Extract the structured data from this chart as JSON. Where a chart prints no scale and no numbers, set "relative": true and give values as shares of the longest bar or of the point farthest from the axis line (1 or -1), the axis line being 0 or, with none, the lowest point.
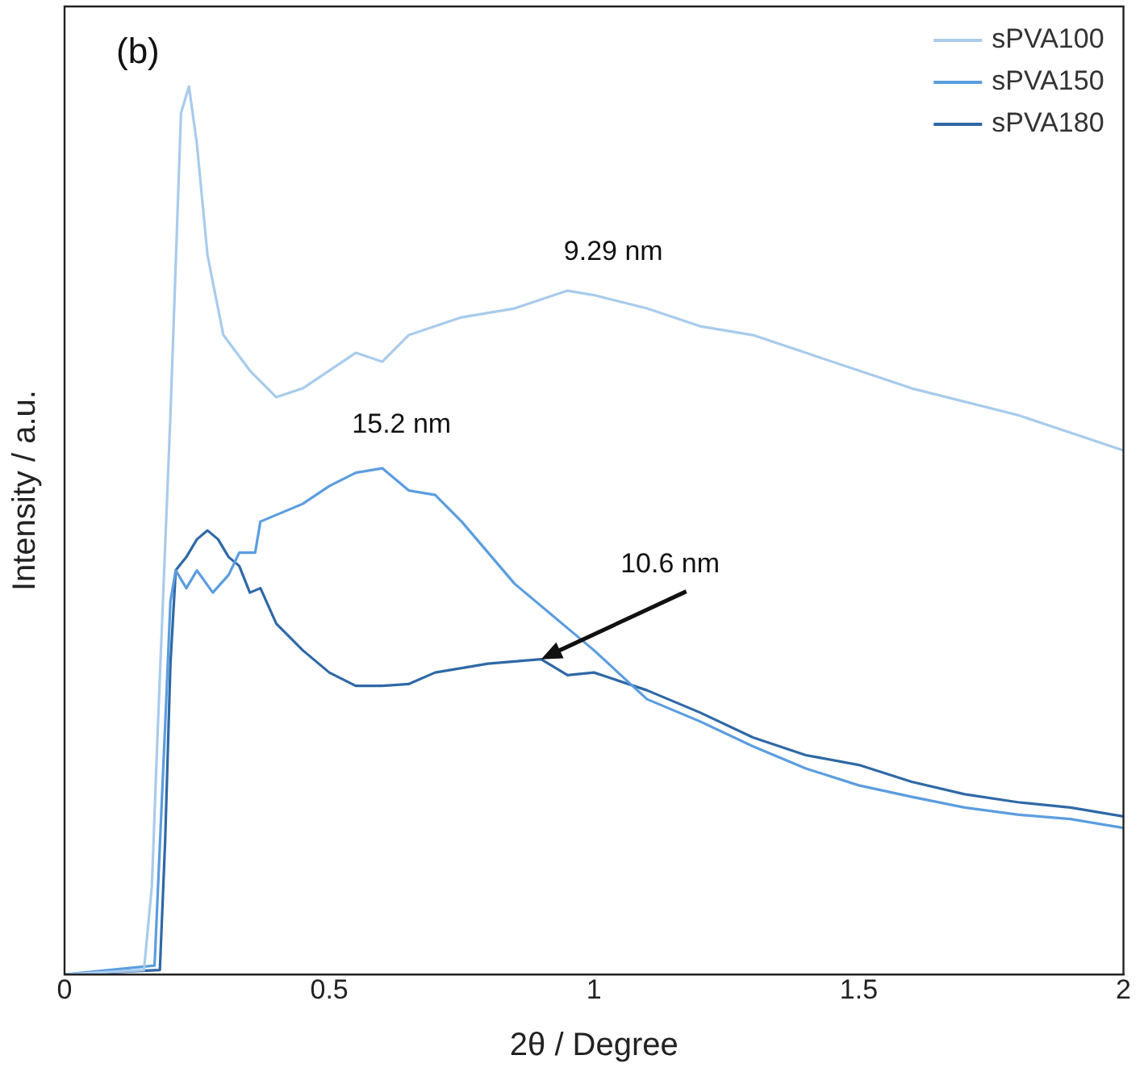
{
  "chart_data": {
    "type": "line",
    "relative": true,
    "xlabel": "2θ / Degree",
    "ylabel": "Intensity / a.u.",
    "xlim": [
      0,
      2
    ],
    "xticks": [
      0,
      0.5,
      1,
      1.5,
      2
    ],
    "grid": false,
    "legend": "top right",
    "marker": "none",
    "line_style": "solid",
    "annotations": [
      "(b)",
      {
        "text": "9.29 nm",
        "x": 1.0,
        "y": 0.765
      },
      {
        "text": "15.2 nm",
        "x": 0.6,
        "y": 0.57
      },
      {
        "text": "10.6 nm",
        "x": 0.9,
        "y": 0.355
      }
    ],
    "series": [
      {
        "name": "sPVA100",
        "color": "#a9cbec",
        "x": [
          0,
          0.15,
          0.165,
          0.175,
          0.2,
          0.22,
          0.235,
          0.25,
          0.27,
          0.3,
          0.35,
          0.4,
          0.45,
          0.5,
          0.55,
          0.6,
          0.65,
          0.75,
          0.85,
          0.95,
          1.0,
          1.1,
          1.2,
          1.3,
          1.4,
          1.5,
          1.6,
          1.7,
          1.8,
          1.9,
          2.0
        ],
        "values": [
          0,
          0.005,
          0.1,
          0.26,
          0.63,
          0.97,
          1.0,
          0.935,
          0.81,
          0.72,
          0.68,
          0.65,
          0.66,
          0.68,
          0.7,
          0.69,
          0.72,
          0.74,
          0.75,
          0.77,
          0.765,
          0.75,
          0.73,
          0.72,
          0.7,
          0.68,
          0.66,
          0.645,
          0.63,
          0.61,
          0.59
        ]
      },
      {
        "name": "sPVA150",
        "color": "#5b9ddf",
        "x": [
          0,
          0.17,
          0.19,
          0.2,
          0.21,
          0.23,
          0.25,
          0.28,
          0.31,
          0.33,
          0.36,
          0.37,
          0.45,
          0.5,
          0.55,
          0.6,
          0.65,
          0.7,
          0.75,
          0.8,
          0.85,
          0.9,
          0.95,
          1.0,
          1.1,
          1.2,
          1.3,
          1.4,
          1.5,
          1.6,
          1.7,
          1.8,
          1.9,
          2.0
        ],
        "values": [
          0,
          0.01,
          0.28,
          0.42,
          0.455,
          0.435,
          0.455,
          0.43,
          0.45,
          0.475,
          0.475,
          0.51,
          0.53,
          0.55,
          0.565,
          0.57,
          0.545,
          0.54,
          0.51,
          0.475,
          0.44,
          0.415,
          0.39,
          0.365,
          0.31,
          0.285,
          0.257,
          0.232,
          0.213,
          0.2,
          0.188,
          0.18,
          0.175,
          0.165
        ]
      },
      {
        "name": "sPVA180",
        "color": "#2f68a6",
        "x": [
          0,
          0.18,
          0.19,
          0.2,
          0.21,
          0.23,
          0.25,
          0.27,
          0.29,
          0.31,
          0.33,
          0.35,
          0.37,
          0.4,
          0.45,
          0.5,
          0.55,
          0.6,
          0.65,
          0.7,
          0.8,
          0.9,
          0.95,
          1.0,
          1.1,
          1.2,
          1.3,
          1.4,
          1.5,
          1.6,
          1.7,
          1.8,
          1.9,
          2.0
        ],
        "values": [
          0,
          0.005,
          0.15,
          0.35,
          0.455,
          0.47,
          0.49,
          0.5,
          0.49,
          0.47,
          0.46,
          0.43,
          0.435,
          0.395,
          0.365,
          0.34,
          0.325,
          0.325,
          0.327,
          0.34,
          0.35,
          0.355,
          0.337,
          0.34,
          0.32,
          0.295,
          0.267,
          0.247,
          0.236,
          0.217,
          0.203,
          0.194,
          0.188,
          0.178
        ]
      }
    ]
  }
}
